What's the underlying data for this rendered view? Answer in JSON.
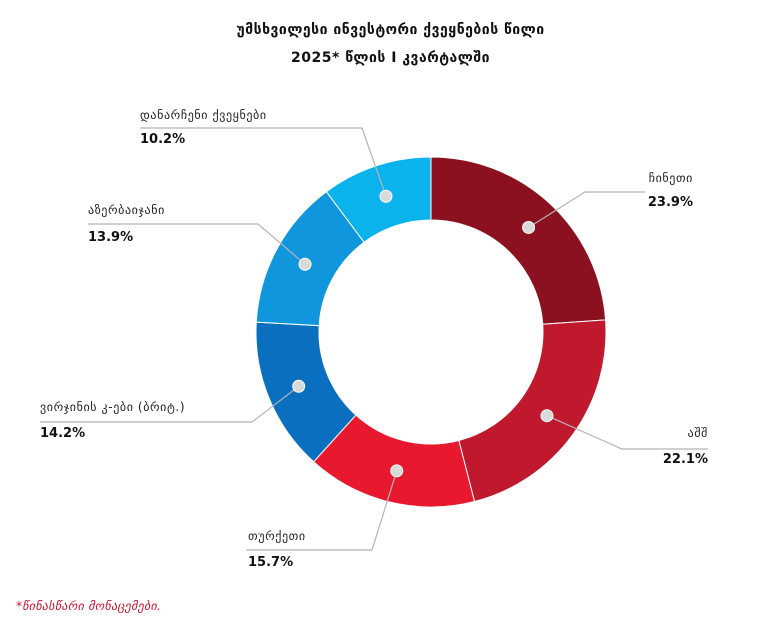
{
  "chart_data": {
    "type": "pie",
    "title": "უმსხვილესი ინვესტორი ქვეყნების წილი",
    "subtitle": "2025* წლის I კვარტალში",
    "categories": [
      "ჩინეთი",
      "აშშ",
      "თურქეთი",
      "ვირჯინის კ-ები (ბრიტ.)",
      "აზერბაიჯანი",
      "დანარჩენი ქვეყნები"
    ],
    "values": [
      23.9,
      22.1,
      15.7,
      14.2,
      13.9,
      10.2
    ],
    "value_labels": [
      "23.9%",
      "22.1%",
      "15.7%",
      "14.2%",
      "13.9%",
      "10.2%"
    ],
    "colors": [
      "#8b1020",
      "#c0182c",
      "#e8192f",
      "#0a6fbf",
      "#0f96dc",
      "#0ab3ec"
    ],
    "unit": "%",
    "donut": true,
    "legend": "none"
  },
  "footnote": "*წინასწარი მონაცემები."
}
